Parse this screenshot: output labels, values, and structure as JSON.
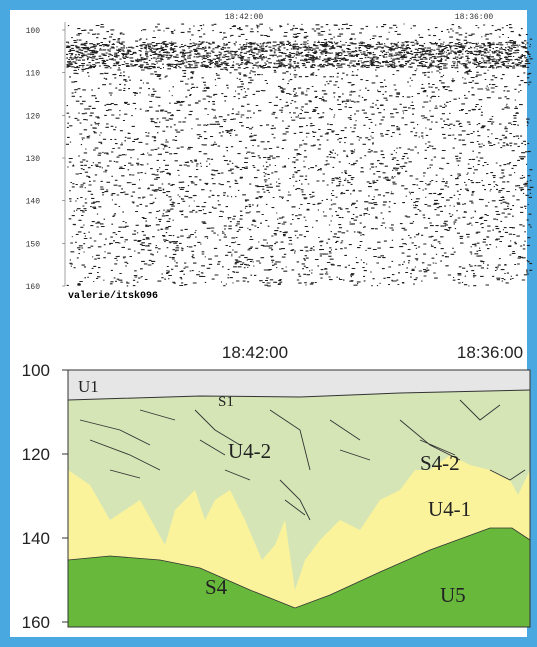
{
  "seismic_panel": {
    "time_labels": [
      "18:42:00",
      "18:36:00"
    ],
    "depth_ticks": [
      100,
      110,
      120,
      130,
      140,
      150,
      160
    ],
    "profile_label": "valerie/itsk096"
  },
  "interpretation_panel": {
    "time_labels": [
      "18:42:00",
      "18:36:00"
    ],
    "depth_ticks": [
      100,
      120,
      140,
      160
    ],
    "unit_labels": [
      "U1",
      "S1",
      "U4-2",
      "S4-2",
      "U4-1",
      "S4",
      "U5"
    ]
  }
}
